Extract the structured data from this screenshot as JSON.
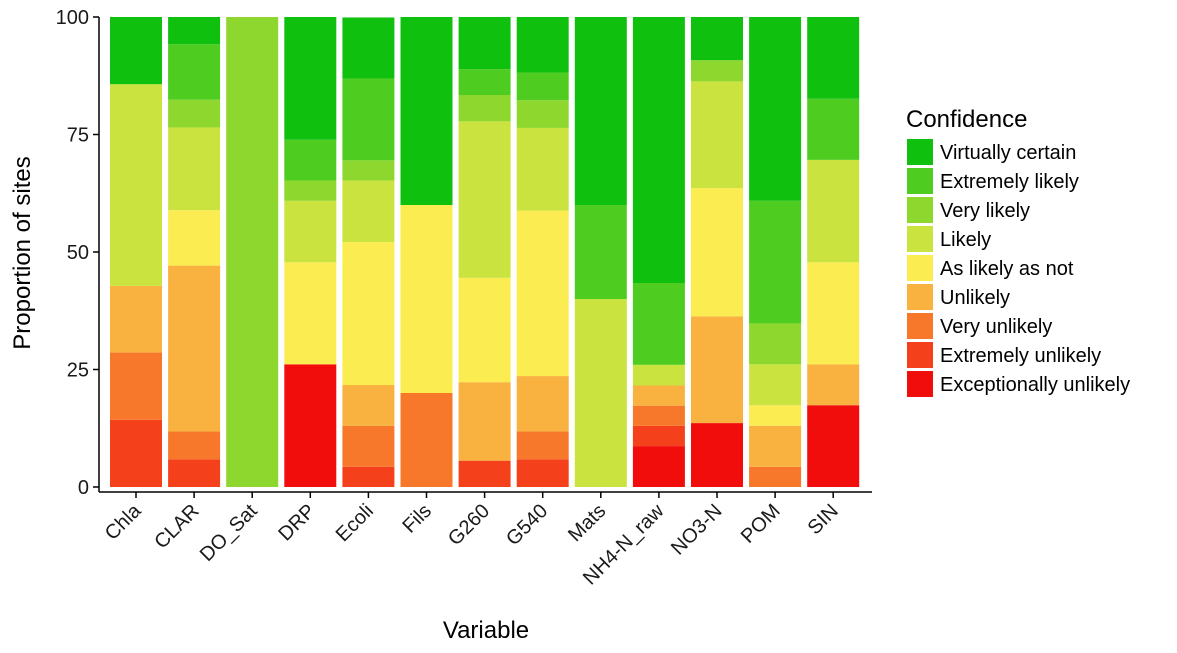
{
  "chart_data": {
    "type": "bar",
    "stacked": true,
    "title": "",
    "xlabel": "Variable",
    "ylabel": "Proportion of sites",
    "ylim": [
      0,
      100
    ],
    "yticks": [
      0,
      25,
      50,
      75,
      100
    ],
    "categories": [
      "Chla",
      "CLAR",
      "DO_Sat",
      "DRP",
      "Ecoli",
      "Fils",
      "G260",
      "G540",
      "Mats",
      "NH4-N_raw",
      "NO3-N",
      "POM",
      "SIN"
    ],
    "legend": {
      "title": "Confidence",
      "position": "right"
    },
    "series": [
      {
        "name": "Exceptionally unlikely",
        "color": "#f20d0d",
        "values": [
          0,
          0,
          0,
          26.1,
          0,
          0,
          0,
          0,
          0,
          8.7,
          13.6,
          0,
          17.4
        ]
      },
      {
        "name": "Extremely unlikely",
        "color": "#f5411b",
        "values": [
          14.3,
          5.9,
          0,
          0,
          4.3,
          0,
          5.6,
          5.9,
          0,
          4.3,
          0,
          0,
          0
        ]
      },
      {
        "name": "Very unlikely",
        "color": "#f7782a",
        "values": [
          14.3,
          5.9,
          0,
          0,
          8.7,
          20.0,
          0,
          5.9,
          0,
          4.3,
          0,
          4.3,
          0
        ]
      },
      {
        "name": "Unlikely",
        "color": "#f9b13f",
        "values": [
          14.2,
          35.3,
          0,
          0,
          8.7,
          0,
          16.7,
          11.8,
          0,
          4.3,
          22.7,
          8.7,
          8.7
        ]
      },
      {
        "name": "As likely as not",
        "color": "#fbec52",
        "values": [
          0,
          11.8,
          0,
          21.7,
          30.4,
          40.0,
          22.2,
          35.2,
          0,
          0,
          27.3,
          4.4,
          21.7
        ]
      },
      {
        "name": "Likely",
        "color": "#cbe33f",
        "values": [
          42.9,
          17.6,
          0,
          13.1,
          13.1,
          0,
          33.3,
          17.6,
          40.0,
          4.4,
          22.7,
          8.7,
          21.8
        ]
      },
      {
        "name": "Very likely",
        "color": "#8ed72e",
        "values": [
          0,
          5.9,
          100,
          4.3,
          4.3,
          0,
          5.6,
          5.9,
          0,
          0,
          4.5,
          8.7,
          0
        ]
      },
      {
        "name": "Extremely likely",
        "color": "#4ecc20",
        "values": [
          0,
          11.8,
          0,
          8.7,
          17.4,
          0,
          5.5,
          5.9,
          20.0,
          17.4,
          0,
          26.1,
          13.0
        ]
      },
      {
        "name": "Virtually certain",
        "color": "#0fc00f",
        "values": [
          14.3,
          5.8,
          0,
          26.1,
          13.0,
          40.0,
          11.1,
          11.8,
          40.0,
          56.6,
          9.2,
          39.1,
          17.4
        ]
      }
    ]
  }
}
